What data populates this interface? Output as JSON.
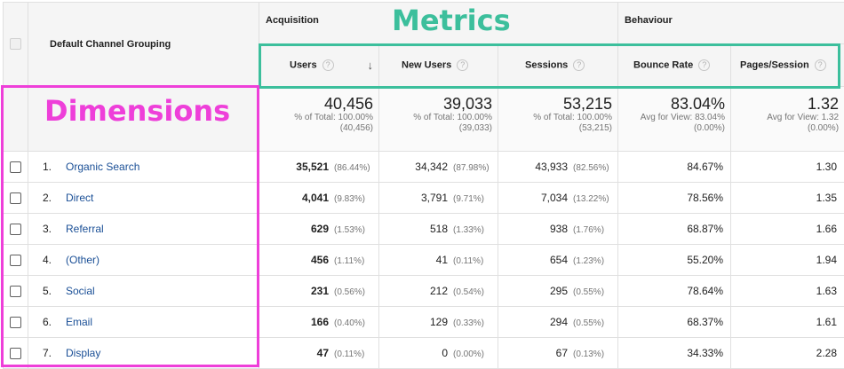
{
  "header": {
    "dimension_label": "Default Channel Grouping",
    "groups": {
      "acquisition": "Acquisition",
      "behaviour": "Behaviour"
    },
    "metrics": [
      {
        "label": "Users",
        "help": "?",
        "sort_icon": "↓"
      },
      {
        "label": "New Users",
        "help": "?"
      },
      {
        "label": "Sessions",
        "help": "?"
      },
      {
        "label": "Bounce Rate",
        "help": "?"
      },
      {
        "label": "Pages/Session",
        "help": "?"
      }
    ]
  },
  "annotations": {
    "metrics": "Metrics",
    "dimensions": "Dimensions"
  },
  "totals": [
    {
      "value": "40,456",
      "sub1": "% of Total: 100.00%",
      "sub2": "(40,456)"
    },
    {
      "value": "39,033",
      "sub1": "% of Total: 100.00%",
      "sub2": "(39,033)"
    },
    {
      "value": "53,215",
      "sub1": "% of Total: 100.00%",
      "sub2": "(53,215)"
    },
    {
      "value": "83.04%",
      "sub1": "Avg for View: 83.04%",
      "sub2": "(0.00%)"
    },
    {
      "value": "1.32",
      "sub1": "Avg for View: 1.32",
      "sub2": "(0.00%)"
    }
  ],
  "rows": [
    {
      "index": "1.",
      "channel": "Organic Search",
      "users": "35,521",
      "users_pct": "(86.44%)",
      "new_users": "34,342",
      "new_users_pct": "(87.98%)",
      "sessions": "43,933",
      "sessions_pct": "(82.56%)",
      "bounce_rate": "84.67%",
      "pages_session": "1.30"
    },
    {
      "index": "2.",
      "channel": "Direct",
      "users": "4,041",
      "users_pct": "(9.83%)",
      "new_users": "3,791",
      "new_users_pct": "(9.71%)",
      "sessions": "7,034",
      "sessions_pct": "(13.22%)",
      "bounce_rate": "78.56%",
      "pages_session": "1.35"
    },
    {
      "index": "3.",
      "channel": "Referral",
      "users": "629",
      "users_pct": "(1.53%)",
      "new_users": "518",
      "new_users_pct": "(1.33%)",
      "sessions": "938",
      "sessions_pct": "(1.76%)",
      "bounce_rate": "68.87%",
      "pages_session": "1.66"
    },
    {
      "index": "4.",
      "channel": "(Other)",
      "users": "456",
      "users_pct": "(1.11%)",
      "new_users": "41",
      "new_users_pct": "(0.11%)",
      "sessions": "654",
      "sessions_pct": "(1.23%)",
      "bounce_rate": "55.20%",
      "pages_session": "1.94"
    },
    {
      "index": "5.",
      "channel": "Social",
      "users": "231",
      "users_pct": "(0.56%)",
      "new_users": "212",
      "new_users_pct": "(0.54%)",
      "sessions": "295",
      "sessions_pct": "(0.55%)",
      "bounce_rate": "78.64%",
      "pages_session": "1.63"
    },
    {
      "index": "6.",
      "channel": "Email",
      "users": "166",
      "users_pct": "(0.40%)",
      "new_users": "129",
      "new_users_pct": "(0.33%)",
      "sessions": "294",
      "sessions_pct": "(0.55%)",
      "bounce_rate": "68.37%",
      "pages_session": "1.61"
    },
    {
      "index": "7.",
      "channel": "Display",
      "users": "47",
      "users_pct": "(0.11%)",
      "new_users": "0",
      "new_users_pct": "(0.00%)",
      "sessions": "67",
      "sessions_pct": "(0.13%)",
      "bounce_rate": "34.33%",
      "pages_session": "2.28"
    }
  ],
  "colors": {
    "metrics_highlight": "#3cbf9c",
    "dimensions_highlight": "#ee3fd9",
    "link": "#1a4f96"
  }
}
